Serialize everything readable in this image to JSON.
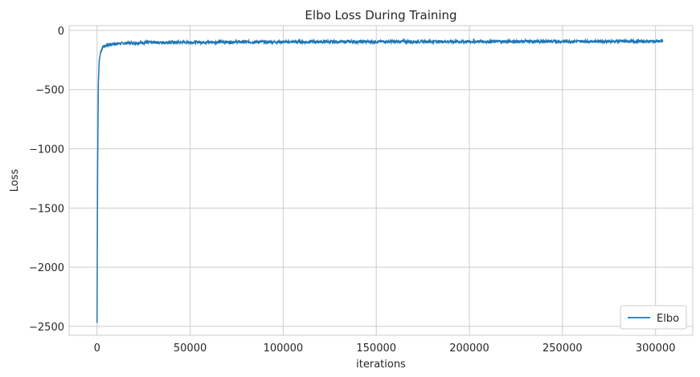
{
  "chart_data": {
    "type": "line",
    "title": "Elbo Loss During Training",
    "xlabel": "iterations",
    "ylabel": "Loss",
    "xlim": [
      -15000,
      320000
    ],
    "ylim": [
      -2575,
      40
    ],
    "xticks": [
      0,
      50000,
      100000,
      150000,
      200000,
      250000,
      300000
    ],
    "xtick_labels": [
      "0",
      "50000",
      "100000",
      "150000",
      "200000",
      "250000",
      "300000"
    ],
    "yticks": [
      0,
      -500,
      -1000,
      -1500,
      -2000,
      -2500
    ],
    "ytick_labels": [
      "0",
      "−500",
      "−1000",
      "−1500",
      "−2000",
      "−2500"
    ],
    "grid": true,
    "legend_position": "lower-right",
    "series": [
      {
        "name": "Elbo",
        "color": "#1f77b4",
        "x": [
          0,
          300,
          700,
          1200,
          2000,
          3000,
          5000,
          8000,
          12000,
          20000,
          30000,
          50000,
          75000,
          100000,
          150000,
          200000,
          250000,
          300000,
          304000
        ],
        "y": [
          -2470,
          -1200,
          -450,
          -250,
          -180,
          -140,
          -125,
          -115,
          -110,
          -105,
          -102,
          -100,
          -98,
          -97,
          -95,
          -94,
          -93,
          -92,
          -92
        ],
        "noise_amplitude": 12
      }
    ]
  }
}
